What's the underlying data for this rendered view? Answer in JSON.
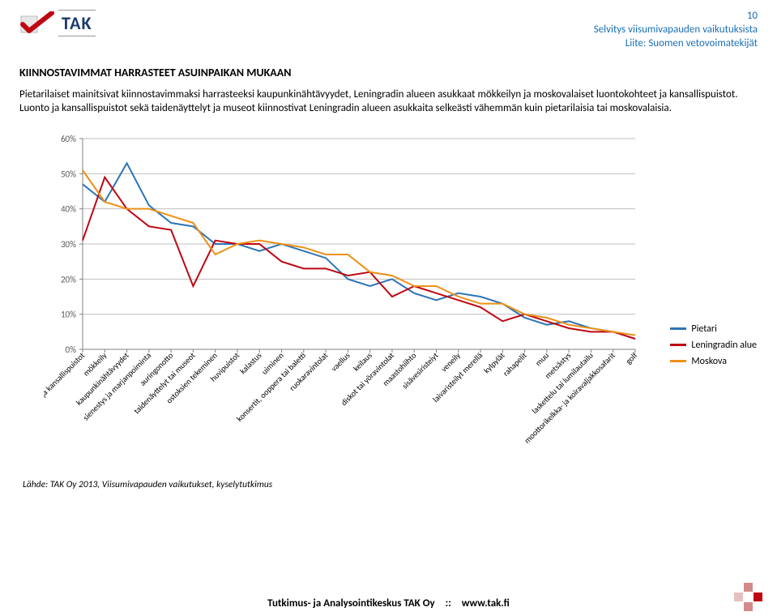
{
  "header": {
    "logo_text": "TAK",
    "page_number": "10",
    "line1": "Selvitys viisumivapauden vaikutuksista",
    "line2": "Liite: Suomen vetovoimatekijät",
    "text_color": "#2e74b5"
  },
  "section_title": "KIINNOSTAVIMMAT HARRASTEET ASUINPAIKAN MUKAAN",
  "body_text": "Pietarilaiset mainitsivat kiinnostavimmaksi harrasteeksi kaupunkinähtävyydet, Leningradin alueen asukkaat mökkeilyn ja moskovalaiset luontokohteet ja kansallispuistot. Luonto ja kansallispuistot sekä taidenäyttelyt ja museot kiinnostivat Leningradin alueen asukkaita selkeästi vähemmän kuin pietarilaisia tai moskovalaisia.",
  "chart": {
    "type": "line",
    "ylim": [
      0,
      60
    ],
    "ytick_step": 10,
    "yticks_pct": [
      "0%",
      "10%",
      "20%",
      "30%",
      "40%",
      "50%",
      "60%"
    ],
    "grid_color": "#bfbfbf",
    "axis_color": "#808080",
    "background": "#ffffff",
    "line_width": 2.0,
    "categories": [
      "luonto ja kansallispuistot",
      "mökkeily",
      "kaupunkinähtävyydet",
      "sienestys ja marjanpoiminta",
      "auringonotto",
      "taidenäyttelyt tai museot",
      "ostoksien tekeminen",
      "huvipuistot",
      "kalastus",
      "uiminen",
      "konsertit, ooppera tai baletti",
      "ruokaravintolat",
      "vaellus",
      "keilaus",
      "diskot tai yöravintolat",
      "maastohiihto",
      "sisävesiristeiyt",
      "veneily",
      "laivaristeilyt merellä",
      "kylpylät",
      "rahapelit",
      "muu",
      "metsästys",
      "laskettelu tai lumilautailu",
      "moottorikelkka- ja koiravaljakkosafarit",
      "golf"
    ],
    "series": [
      {
        "name": "Pietari",
        "color": "#2e74b5",
        "values": [
          47,
          42,
          53,
          41,
          36,
          35,
          30,
          30,
          28,
          30,
          28,
          26,
          20,
          18,
          20,
          16,
          14,
          16,
          15,
          13,
          9,
          7,
          8,
          6,
          5,
          3
        ]
      },
      {
        "name": "Leningradin alue",
        "color": "#be0712",
        "values": [
          31,
          49,
          40,
          35,
          34,
          18,
          31,
          30,
          30,
          25,
          23,
          23,
          21,
          22,
          15,
          18,
          16,
          14,
          12,
          8,
          10,
          8,
          6,
          5,
          5,
          3
        ]
      },
      {
        "name": "Moskova",
        "color": "#ed9017",
        "values": [
          51,
          42,
          40,
          40,
          38,
          36,
          27,
          30,
          31,
          30,
          29,
          27,
          27,
          22,
          21,
          18,
          18,
          15,
          13,
          13,
          10,
          9,
          7,
          6,
          5,
          4
        ]
      }
    ],
    "legend_labels": {
      "s1": "Pietari",
      "s2": "Leningradin alue",
      "s3": "Moskova"
    },
    "tick_fontsize": 11,
    "xlabel_fontsize": 10
  },
  "source_text": "Lähde: TAK Oy 2013, Viisumivapauden vaikutukset, kyselytutkimus",
  "footer": {
    "left": "Tutkimus- ja Analysointikeskus TAK Oy",
    "sep": "::",
    "right": "www.tak.fi",
    "square_colors": [
      "#d48a8a",
      "#be0712",
      "#e6c0c0",
      "#d48a8a"
    ]
  },
  "logo_colors": {
    "check": "#be0712",
    "box": "#d9d9d9"
  }
}
